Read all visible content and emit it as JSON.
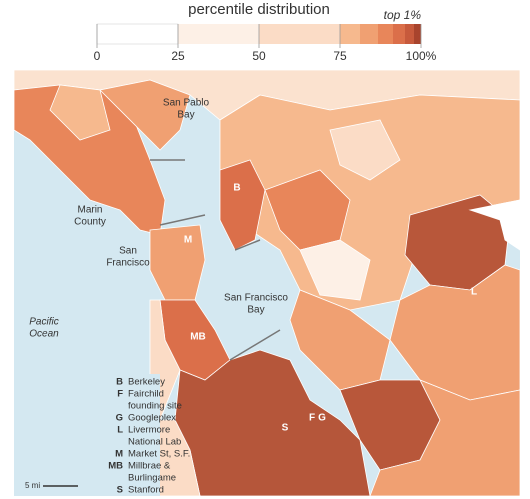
{
  "legend": {
    "title": "percentile distribution",
    "top_label": "top 1%",
    "ticks": [
      0,
      25,
      50,
      75,
      {
        "value": 100,
        "label": "100%"
      }
    ]
  },
  "place_labels": [
    {
      "lines": [
        "San Pablo",
        "Bay"
      ]
    },
    {
      "lines": [
        "Marin",
        "County"
      ]
    },
    {
      "lines": [
        "San",
        "Francisco"
      ]
    },
    {
      "lines": [
        "Pacific",
        "Ocean"
      ]
    },
    {
      "lines": [
        "San Francisco",
        "Bay"
      ]
    }
  ],
  "site_codes": [
    "B",
    "M",
    "MB",
    "S",
    "F",
    "G",
    "L"
  ],
  "key": [
    {
      "code": "B",
      "lines": [
        "Berkeley"
      ]
    },
    {
      "code": "F",
      "lines": [
        "Fairchild",
        "founding site"
      ]
    },
    {
      "code": "G",
      "lines": [
        "Googleplex"
      ]
    },
    {
      "code": "L",
      "lines": [
        "Livermore",
        "National Lab"
      ]
    },
    {
      "code": "M",
      "lines": [
        "Market St, S.F."
      ]
    },
    {
      "code": "MB",
      "lines": [
        "Millbrae &",
        "Burlingame"
      ]
    },
    {
      "code": "S",
      "lines": [
        "Stanford"
      ]
    }
  ],
  "scale_label": "5 mi"
}
